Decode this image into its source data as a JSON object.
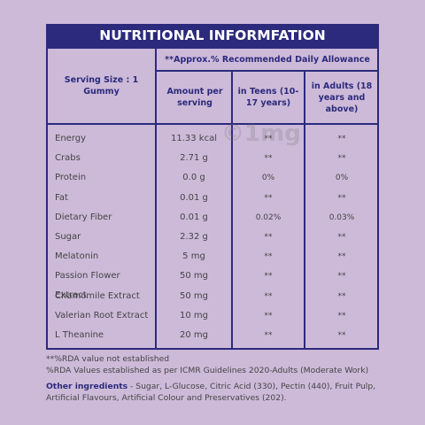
{
  "title": "NUTRITIONAL INFORMFATION",
  "table": {
    "serving_size": "Serving Size : 1 Gummy",
    "rda_header": "**Approx.% Recommended Daily Allowance",
    "columns": [
      "Amount per serving",
      "in Teens (10-17 years)",
      "in Adults (18 years and above)"
    ],
    "rows": [
      [
        "Energy",
        "11.33 kcal",
        "**",
        "**"
      ],
      [
        "Crabs",
        "2.71 g",
        "**",
        "**"
      ],
      [
        "Protein",
        "0.0 g",
        "0%",
        "0%"
      ],
      [
        "Fat",
        "0.01 g",
        "**",
        "**"
      ],
      [
        "Dietary Fiber",
        "0.01 g",
        "0.02%",
        "0.03%"
      ],
      [
        "Sugar",
        "2.32 g",
        "**",
        "**"
      ],
      [
        "Melatonin",
        "5 mg",
        "**",
        "**"
      ],
      [
        "Passion Flower Extract",
        "50 mg",
        "**",
        "**"
      ],
      [
        "Chamomile Extract",
        "50 mg",
        "**",
        "**"
      ],
      [
        "Valerian Root Extract",
        "10 mg",
        "**",
        "**"
      ],
      [
        "L Theanine",
        "20 mg",
        "**",
        "**"
      ]
    ]
  },
  "watermark": "©1mg",
  "notes": [
    "**%RDA value not established",
    "%RDA Values established as per ICMR Guidelines 2020-Adults (Moderate Work)"
  ],
  "other_ingredients": {
    "label": "Other ingredients",
    "text": " - Sugar, L-Glucose, Citric Acid (330), Pectin (440), Fruit Pulp, Artificial Flavours, Artificial Colour and Preservatives (202)."
  }
}
